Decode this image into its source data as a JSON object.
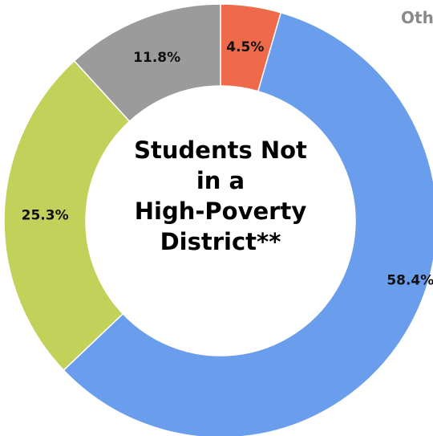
{
  "chart_data": {
    "type": "pie",
    "variant": "donut",
    "center_text": [
      "Students Not",
      "in a",
      "High-Poverty",
      "District**"
    ],
    "legend_fragment": "Oth",
    "slices": [
      {
        "label": "4.5%",
        "value": 4.5,
        "color": "#ef6a4b"
      },
      {
        "label": "58.4%",
        "value": 58.4,
        "color": "#6b9ded"
      },
      {
        "label": "25.3%",
        "value": 25.3,
        "color": "#c2d15a"
      },
      {
        "label": "11.8%",
        "value": 11.8,
        "color": "#9b9b9b"
      }
    ],
    "start": "top, clockwise"
  }
}
